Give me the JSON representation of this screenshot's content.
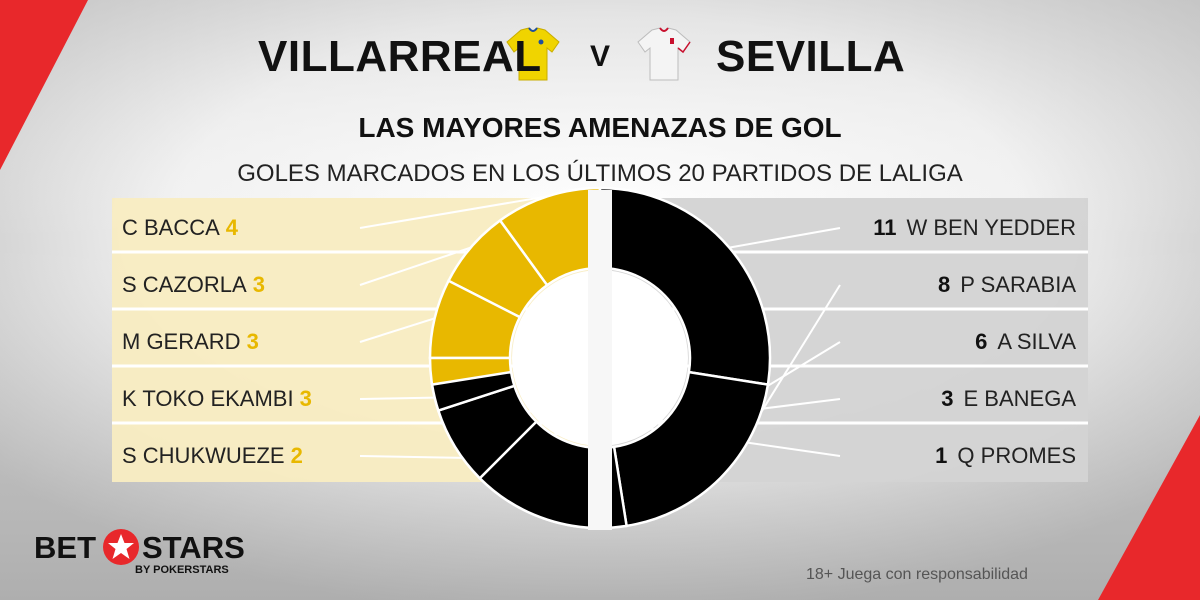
{
  "header": {
    "home_team": "VILLARREAL",
    "vs_label": "V",
    "away_team": "SEVILLA",
    "title": "LAS MAYORES AMENAZAS DE GOL",
    "subtitle": "GOLES MARCADOS EN LOS ÚLTIMOS 20 PARTIDOS DE LALIGA"
  },
  "colors": {
    "home_accent": "#e8b800",
    "home_panel": "#f8ecc2",
    "away_accent": "#000000",
    "away_panel": "#d3d3d3",
    "remainder": "#e4e4e4",
    "brand_red": "#e8282b"
  },
  "chart_data": [
    {
      "type": "pie",
      "title": "",
      "team": "VILLARREAL",
      "categories": [
        "C BACCA",
        "S CAZORLA",
        "M GERARD",
        "K TOKO EKAMBI",
        "S CHUKWUEZE"
      ],
      "values": [
        4,
        3,
        3,
        3,
        2
      ],
      "color": "#e8b800"
    },
    {
      "type": "pie",
      "title": "",
      "team": "SEVILLA",
      "categories": [
        "W BEN YEDDER",
        "P SARABIA",
        "A SILVA",
        "E BANEGA",
        "Q PROMES"
      ],
      "values": [
        11,
        8,
        6,
        3,
        1
      ],
      "color": "#000000"
    }
  ],
  "footer": {
    "logo_left": "BET",
    "logo_right": "STARS",
    "logo_sub": "BY POKERSTARS",
    "disclaimer": "18+ Juega con responsabilidad"
  }
}
